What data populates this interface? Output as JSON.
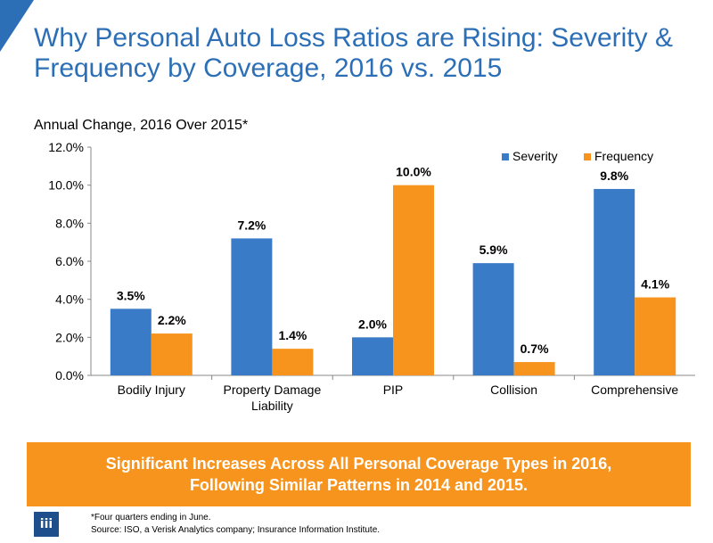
{
  "header": {
    "title": "Why Personal Auto Loss Ratios are Rising: Severity & Frequency by Coverage, 2016 vs. 2015"
  },
  "chart_data": {
    "type": "bar",
    "title": "Annual Change, 2016 Over 2015*",
    "categories": [
      [
        "Bodily Injury"
      ],
      [
        "Property Damage",
        "Liability"
      ],
      [
        "PIP"
      ],
      [
        "Collision"
      ],
      [
        "Comprehensive"
      ]
    ],
    "series": [
      {
        "name": "Severity",
        "color": "#3a7bc8",
        "values": [
          3.5,
          7.2,
          2.0,
          5.9,
          9.8
        ],
        "labels": [
          "3.5%",
          "7.2%",
          "2.0%",
          "5.9%",
          "9.8%"
        ]
      },
      {
        "name": "Frequency",
        "color": "#f7941e",
        "values": [
          2.2,
          1.4,
          10.0,
          0.7,
          4.1
        ],
        "labels": [
          "2.2%",
          "1.4%",
          "10.0%",
          "0.7%",
          "4.1%"
        ]
      }
    ],
    "ylim": [
      0,
      12
    ],
    "yticks": [
      "0.0%",
      "2.0%",
      "4.0%",
      "6.0%",
      "8.0%",
      "10.0%",
      "12.0%"
    ],
    "legend_position": "top-right",
    "grid": false
  },
  "callout": {
    "line1": "Significant Increases Across All Personal Coverage Types in 2016,",
    "line2": "Following Similar Patterns in 2014 and 2015."
  },
  "footer": {
    "logo_text": "iii",
    "note": "*Four quarters ending in June.",
    "source": "Source: ISO, a Verisk Analytics company; Insurance Information Institute."
  }
}
